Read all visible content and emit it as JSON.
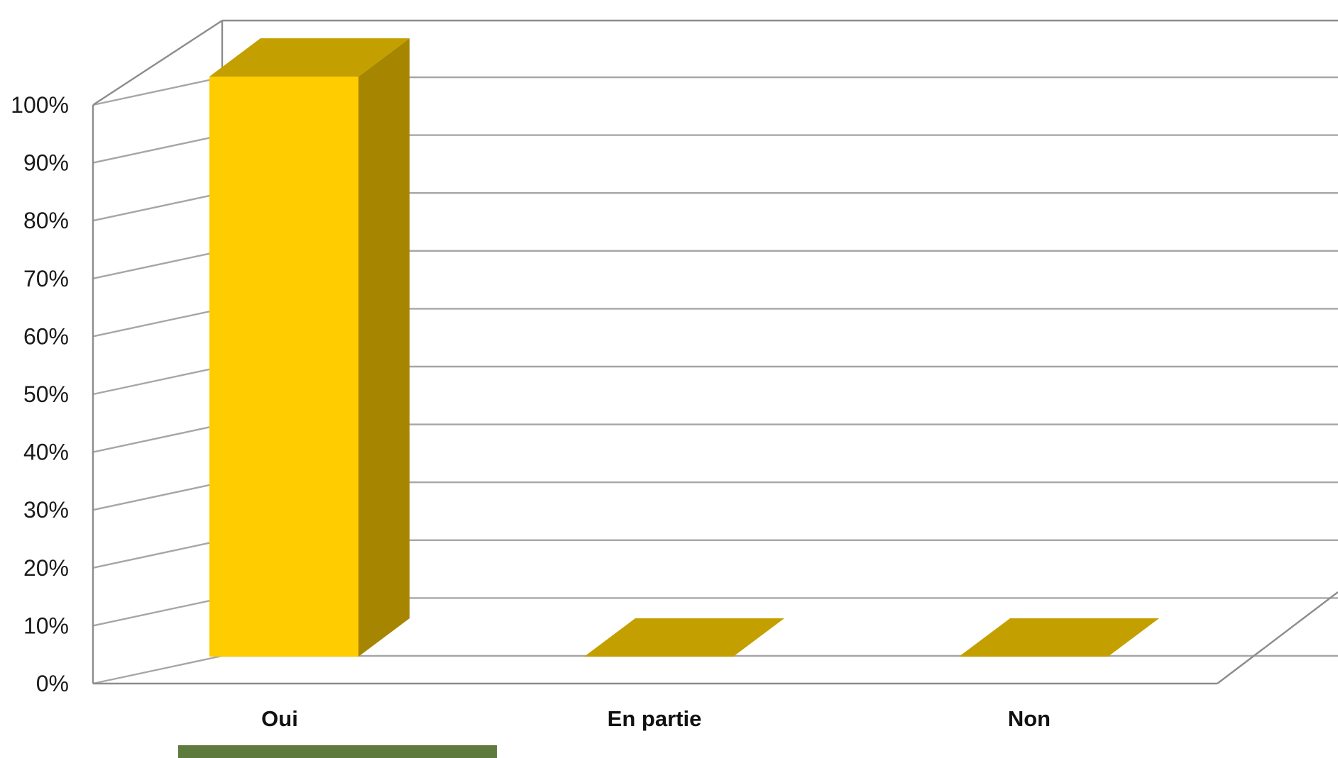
{
  "chart_data": {
    "type": "bar",
    "is_3d": true,
    "categories": [
      "Oui",
      "En partie",
      "Non"
    ],
    "values": [
      100,
      0,
      0
    ],
    "value_unit": "%",
    "ylim": [
      0,
      100
    ],
    "y_ticks": [
      "0%",
      "10%",
      "20%",
      "30%",
      "40%",
      "50%",
      "60%",
      "70%",
      "80%",
      "90%",
      "100%"
    ],
    "grid": true,
    "title": "",
    "xlabel": "",
    "ylabel": "",
    "colors": {
      "bar_front": "#FFCC00",
      "bar_side": "#A68500",
      "bar_top": "#C49F00",
      "gridline": "#A6A6A6",
      "legend_swatch": "#5E7A3D"
    }
  }
}
